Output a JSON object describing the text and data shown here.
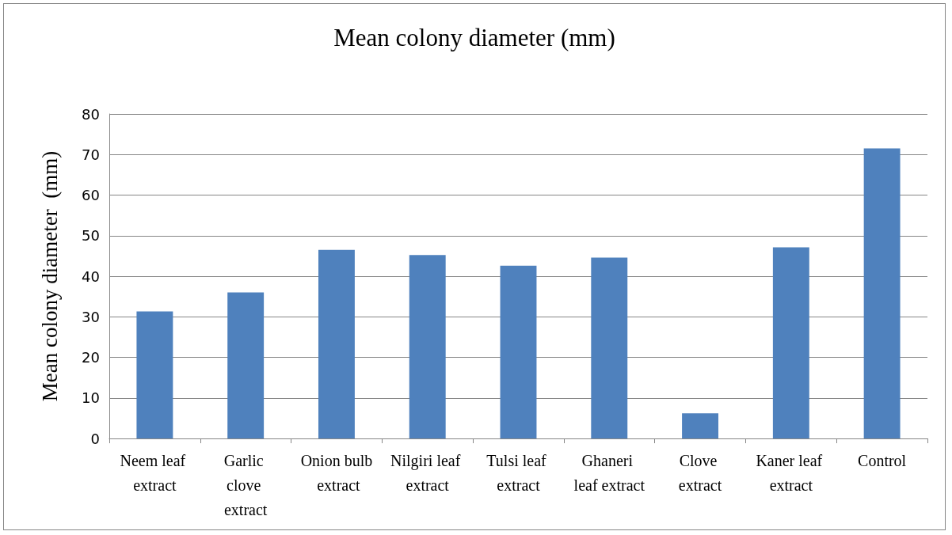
{
  "chart_data": {
    "type": "bar",
    "title": "Mean colony diameter (mm)",
    "ylabel": "Mean colony diameter  (mm)",
    "categories": [
      "Neem leaf extract",
      "Garlic clove extract",
      "Onion bulb extract",
      "Nilgiri leaf extract",
      "Tulsi leaf extract",
      "Ghaneri leaf extract",
      "Clove extract",
      "Kaner leaf extract",
      "Control"
    ],
    "values": [
      31.3,
      36.0,
      46.5,
      45.2,
      42.6,
      44.6,
      6.2,
      47.1,
      71.5
    ],
    "color": "#4f81bd",
    "ylim": [
      0,
      80
    ],
    "yticks": [
      0,
      10,
      20,
      30,
      40,
      50,
      60,
      70,
      80
    ],
    "grid": "y"
  }
}
